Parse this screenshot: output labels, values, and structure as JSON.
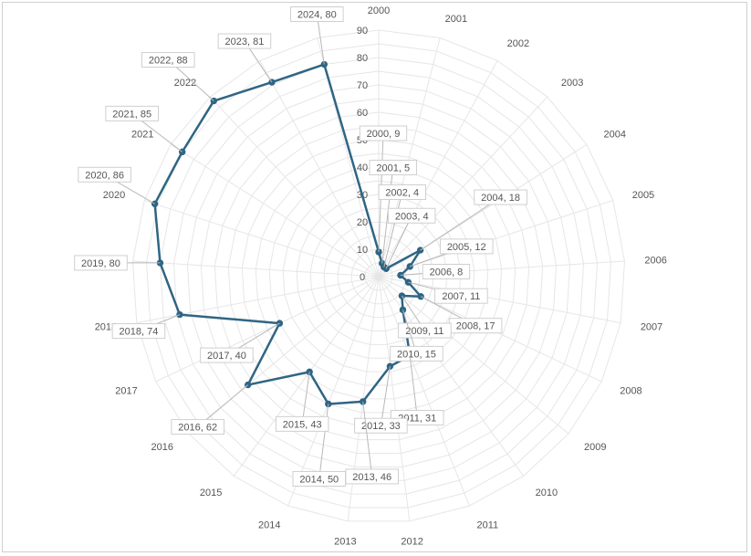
{
  "chart_data": {
    "type": "radar",
    "categories": [
      "2000",
      "2001",
      "2002",
      "2003",
      "2004",
      "2005",
      "2006",
      "2007",
      "2008",
      "2009",
      "2010",
      "2011",
      "2012",
      "2013",
      "2014",
      "2015",
      "2016",
      "2017",
      "2018",
      "2019",
      "2020",
      "2021",
      "2022",
      "2023",
      "2024"
    ],
    "series": [
      {
        "values": [
          9,
          5,
          4,
          4,
          18,
          12,
          8,
          11,
          17,
          11,
          15,
          31,
          33,
          46,
          50,
          43,
          62,
          40,
          74,
          80,
          86,
          85,
          88,
          81,
          80
        ]
      }
    ],
    "radial_ticks": [
      0,
      10,
      20,
      30,
      40,
      50,
      60,
      70,
      80,
      90
    ],
    "rlim": [
      0,
      90
    ],
    "grid": true,
    "data_labels": [
      "2000, 9",
      "2001, 5",
      "2002, 4",
      "2003, 4",
      "2004, 18",
      "2005, 12",
      "2006, 8",
      "2007, 11",
      "2008, 17",
      "2009, 11",
      "2010, 15",
      "2011, 31",
      "2012, 33",
      "2013, 46",
      "2014, 50",
      "2015, 43",
      "2016, 62",
      "2017, 40",
      "2018, 74",
      "2019, 80",
      "2020, 86",
      "2021, 85",
      "2022, 88",
      "2023, 81",
      "2024, 80"
    ],
    "series_color": "#2f6584"
  }
}
